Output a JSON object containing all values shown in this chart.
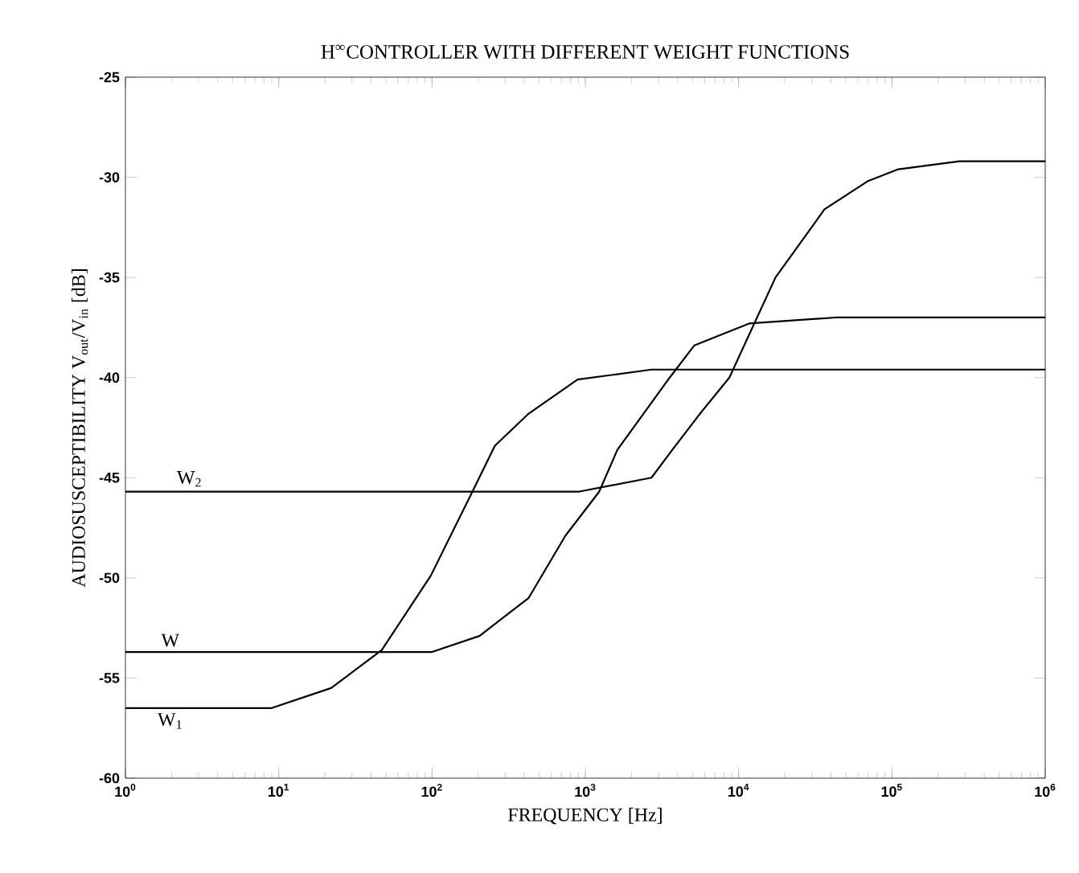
{
  "chart_data": {
    "type": "line",
    "title": "H$^{∞}$CONTROLLER WITH DIFFERENT WEIGHT FUNCTIONS",
    "xlabel": "FREQUENCY [Hz]",
    "ylabel": "AUDIOSUSCEPTIBILITY V$_{out}$/V$_{in}$ [dB]",
    "log": "x",
    "legend": false,
    "marker": "none",
    "line_style": "solid",
    "xlim": [
      1,
      1000000
    ],
    "ylim": [
      -60,
      -25
    ],
    "xticks": [
      {
        "value": 1,
        "label": "10$^{0}$"
      },
      {
        "value": 10,
        "label": "10$^{1}$"
      },
      {
        "value": 100,
        "label": "10$^{2}$"
      },
      {
        "value": 1000,
        "label": "10$^{3}$"
      },
      {
        "value": 10000,
        "label": "10$^{4}$"
      },
      {
        "value": 100000,
        "label": "10$^{5}$"
      },
      {
        "value": 1000000,
        "label": "10$^{6}$"
      }
    ],
    "yticks": [
      -60,
      -55,
      -50,
      -45,
      -40,
      -35,
      -30,
      -25
    ],
    "series": [
      {
        "name": "W$_{2}$",
        "color": "#000000",
        "x": [
          1,
          900,
          2700,
          3700,
          5600,
          8700,
          17400,
          36300,
          69200,
          110000,
          275000,
          1000000
        ],
        "values": [
          -45.7,
          -45.7,
          -45.0,
          -43.6,
          -41.8,
          -40.0,
          -35.0,
          -31.6,
          -30.2,
          -29.6,
          -29.2,
          -29.2
        ]
      },
      {
        "name": "W",
        "color": "#000000",
        "x": [
          1,
          100,
          204,
          427,
          741,
          1230,
          1620,
          3550,
          5130,
          11700,
          42700,
          1000000
        ],
        "values": [
          -53.7,
          -53.7,
          -52.9,
          -51.0,
          -47.9,
          -45.7,
          -43.6,
          -40.0,
          -38.4,
          -37.3,
          -37.0,
          -37.0
        ]
      },
      {
        "name": "W$_{1}$",
        "color": "#000000",
        "x": [
          1,
          9,
          22,
          47,
          98,
          186,
          257,
          427,
          890,
          2700,
          1000000
        ],
        "values": [
          -56.5,
          -56.5,
          -55.5,
          -53.6,
          -49.9,
          -45.6,
          -43.4,
          -41.8,
          -40.1,
          -39.6,
          -39.6
        ]
      }
    ]
  }
}
